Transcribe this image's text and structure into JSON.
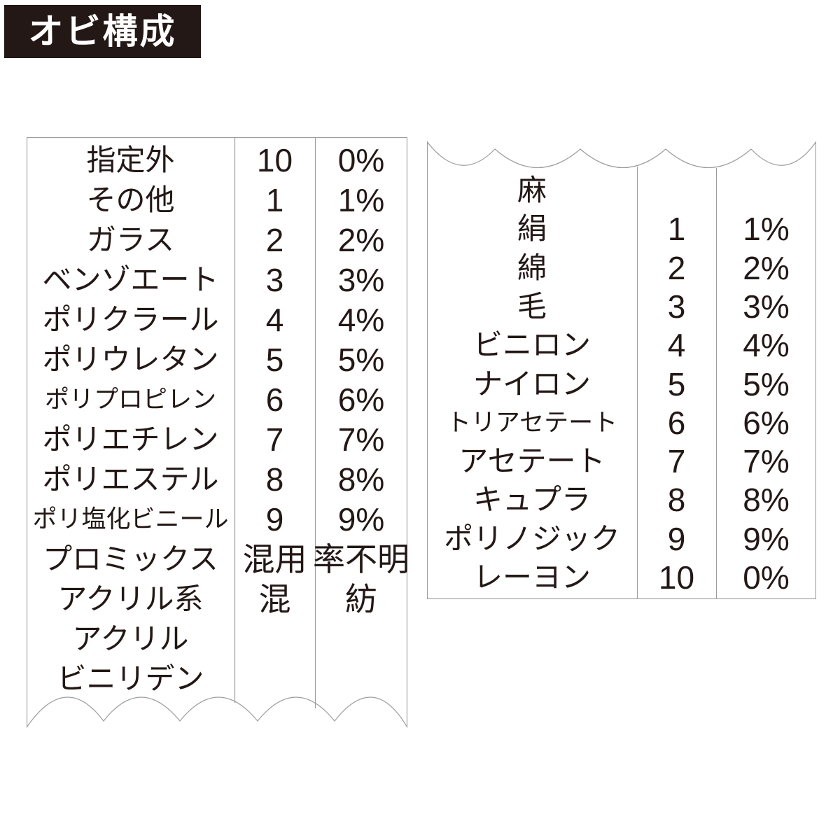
{
  "header": {
    "title": "オビ構成"
  },
  "left_panel": {
    "rows": [
      {
        "name": "指定外",
        "num": "10",
        "pct": "0%"
      },
      {
        "name": "その他",
        "num": "1",
        "pct": "1%"
      },
      {
        "name": "ガラス",
        "num": "2",
        "pct": "2%"
      },
      {
        "name": "ベンゾエート",
        "num": "3",
        "pct": "3%"
      },
      {
        "name": "ポリクラール",
        "num": "4",
        "pct": "4%"
      },
      {
        "name": "ポリウレタン",
        "num": "5",
        "pct": "5%"
      },
      {
        "name": "ポリプロピレン",
        "num": "6",
        "pct": "6%"
      },
      {
        "name": "ポリエチレン",
        "num": "7",
        "pct": "7%"
      },
      {
        "name": "ポリエステル",
        "num": "8",
        "pct": "8%"
      },
      {
        "name": "ポリ塩化ビニール",
        "num": "9",
        "pct": "9%"
      },
      {
        "name": "プロミックス",
        "num": "混用",
        "pct": "率不明"
      },
      {
        "name": "アクリル系",
        "num": "混",
        "pct": "紡"
      },
      {
        "name": "アクリル",
        "num": "",
        "pct": ""
      },
      {
        "name": "ビニリデン",
        "num": "",
        "pct": ""
      }
    ]
  },
  "right_panel": {
    "rows": [
      {
        "name": "麻",
        "num": "",
        "pct": ""
      },
      {
        "name": "絹",
        "num": "1",
        "pct": "1%"
      },
      {
        "name": "綿",
        "num": "2",
        "pct": "2%"
      },
      {
        "name": "毛",
        "num": "3",
        "pct": "3%"
      },
      {
        "name": "ビニロン",
        "num": "4",
        "pct": "4%"
      },
      {
        "name": "ナイロン",
        "num": "5",
        "pct": "5%"
      },
      {
        "name": "トリアセテート",
        "num": "6",
        "pct": "6%"
      },
      {
        "name": "アセテート",
        "num": "7",
        "pct": "7%"
      },
      {
        "name": "キュプラ",
        "num": "8",
        "pct": "8%"
      },
      {
        "name": "ポリノジック",
        "num": "9",
        "pct": "9%"
      },
      {
        "name": "レーヨン",
        "num": "10",
        "pct": "0%"
      }
    ]
  }
}
